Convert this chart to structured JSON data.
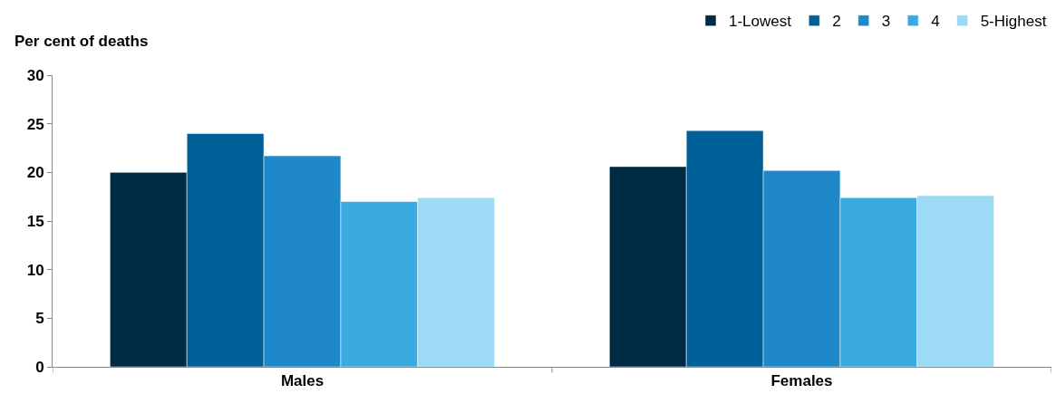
{
  "chart_data": {
    "type": "bar",
    "ylabel": "Per cent of deaths",
    "categories": [
      "Males",
      "Females"
    ],
    "series": [
      {
        "name": "1-Lowest",
        "color": "#002b45",
        "values": [
          20.0,
          20.6
        ]
      },
      {
        "name": "2",
        "color": "#005f96",
        "values": [
          24.0,
          24.3
        ]
      },
      {
        "name": "3",
        "color": "#1e88c9",
        "values": [
          21.7,
          20.2
        ]
      },
      {
        "name": "4",
        "color": "#3aabe0",
        "values": [
          17.0,
          17.4
        ]
      },
      {
        "name": "5-Highest",
        "color": "#9cdaf5",
        "values": [
          17.4,
          17.6
        ]
      }
    ],
    "ylim": [
      0,
      30
    ],
    "yticks": [
      0,
      5,
      10,
      15,
      20,
      25,
      30
    ],
    "legend": "top right"
  }
}
